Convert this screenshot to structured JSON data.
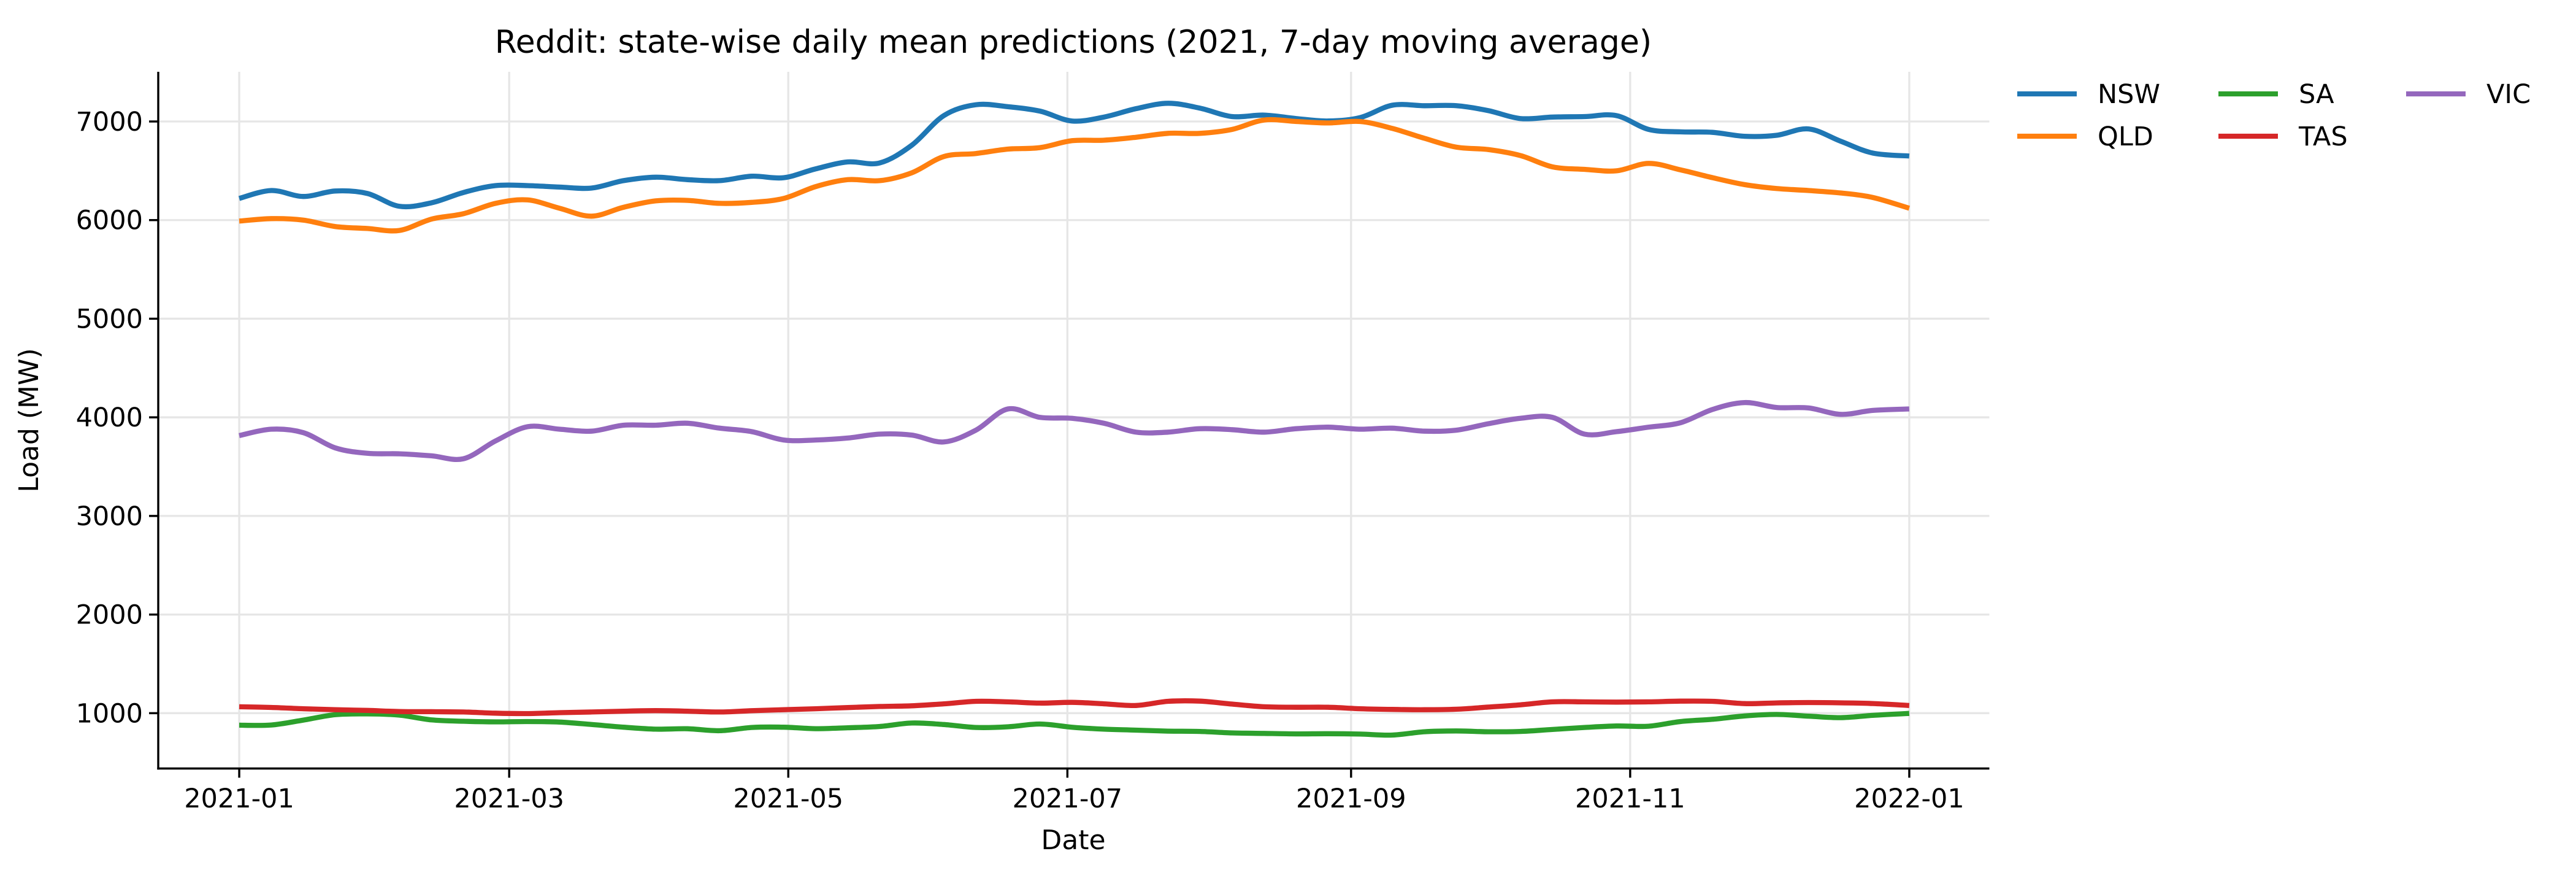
{
  "figure": {
    "title": "Reddit: state-wise daily mean predictions (2021, 7-day moving average)",
    "xlabel": "Date",
    "ylabel": "Load (MW)",
    "background": "#ffffff",
    "text_color": "#000000",
    "grid_color": "#e6e6e6",
    "spine_color": "#000000"
  },
  "chart_data": {
    "type": "line",
    "title": "Reddit: state-wise daily mean predictions (2021, 7-day moving average)",
    "xlabel": "Date",
    "ylabel": "Load (MW)",
    "grid": true,
    "legend_position": "outside-right-top",
    "legend_columns": 3,
    "x_unit": "days since 2021-01-01",
    "xlim_days": [
      -17.7,
      382.5
    ],
    "ylim": [
      439,
      7504
    ],
    "y_ticks": [
      1000,
      2000,
      3000,
      4000,
      5000,
      6000,
      7000
    ],
    "x_ticks": [
      {
        "label": "2021-01",
        "day": 0
      },
      {
        "label": "2021-03",
        "day": 59
      },
      {
        "label": "2021-05",
        "day": 120
      },
      {
        "label": "2021-07",
        "day": 181
      },
      {
        "label": "2021-09",
        "day": 243
      },
      {
        "label": "2021-11",
        "day": 304
      },
      {
        "label": "2022-01",
        "day": 365
      }
    ],
    "sample_days": [
      0,
      7,
      14,
      21,
      28,
      35,
      42,
      49,
      56,
      63,
      70,
      77,
      84,
      91,
      98,
      105,
      112,
      119,
      126,
      133,
      140,
      147,
      154,
      161,
      168,
      175,
      182,
      189,
      196,
      203,
      210,
      217,
      224,
      231,
      238,
      245,
      252,
      259,
      266,
      273,
      280,
      287,
      294,
      301,
      308,
      315,
      322,
      329,
      336,
      343,
      350,
      357,
      365
    ],
    "series": [
      {
        "name": "NSW",
        "color": "#1f77b4",
        "values": [
          6220,
          6300,
          6240,
          6295,
          6270,
          6140,
          6175,
          6280,
          6350,
          6350,
          6335,
          6325,
          6400,
          6435,
          6410,
          6400,
          6445,
          6430,
          6520,
          6590,
          6580,
          6760,
          7060,
          7170,
          7150,
          7105,
          7005,
          7045,
          7130,
          7185,
          7135,
          7050,
          7065,
          7030,
          7005,
          7040,
          7165,
          7160,
          7160,
          7110,
          7030,
          7045,
          7050,
          7060,
          6920,
          6895,
          6890,
          6850,
          6860,
          6925,
          6800,
          6680,
          6650
        ]
      },
      {
        "name": "QLD",
        "color": "#ff7f0e",
        "values": [
          5990,
          6015,
          6000,
          5935,
          5915,
          5895,
          6010,
          6065,
          6170,
          6205,
          6120,
          6040,
          6130,
          6195,
          6200,
          6170,
          6180,
          6220,
          6340,
          6410,
          6400,
          6480,
          6645,
          6675,
          6720,
          6735,
          6805,
          6810,
          6840,
          6880,
          6880,
          6920,
          7015,
          7000,
          6985,
          7000,
          6930,
          6830,
          6740,
          6715,
          6655,
          6540,
          6515,
          6500,
          6575,
          6510,
          6430,
          6360,
          6320,
          6300,
          6275,
          6230,
          6120
        ]
      },
      {
        "name": "SA",
        "color": "#2ca02c",
        "values": [
          878,
          880,
          930,
          985,
          993,
          980,
          932,
          918,
          912,
          915,
          910,
          885,
          858,
          838,
          842,
          822,
          855,
          858,
          843,
          852,
          865,
          900,
          885,
          855,
          862,
          890,
          858,
          838,
          828,
          818,
          815,
          800,
          795,
          790,
          792,
          788,
          778,
          812,
          820,
          812,
          815,
          835,
          855,
          870,
          868,
          915,
          938,
          972,
          987,
          970,
          955,
          978,
          998
        ]
      },
      {
        "name": "TAS",
        "color": "#d62728",
        "values": [
          1065,
          1058,
          1045,
          1035,
          1028,
          1017,
          1015,
          1012,
          1000,
          996,
          1005,
          1012,
          1020,
          1026,
          1020,
          1012,
          1025,
          1035,
          1045,
          1057,
          1068,
          1075,
          1095,
          1120,
          1115,
          1102,
          1110,
          1095,
          1078,
          1120,
          1122,
          1092,
          1065,
          1060,
          1060,
          1045,
          1038,
          1035,
          1040,
          1062,
          1085,
          1115,
          1115,
          1112,
          1115,
          1122,
          1120,
          1097,
          1104,
          1108,
          1105,
          1098,
          1078
        ]
      },
      {
        "name": "VIC",
        "color": "#9467bd",
        "values": [
          3815,
          3880,
          3845,
          3690,
          3635,
          3630,
          3610,
          3580,
          3760,
          3905,
          3880,
          3860,
          3920,
          3920,
          3940,
          3890,
          3855,
          3770,
          3770,
          3790,
          3830,
          3820,
          3750,
          3870,
          4085,
          4000,
          3990,
          3940,
          3850,
          3850,
          3885,
          3875,
          3850,
          3885,
          3900,
          3880,
          3890,
          3860,
          3870,
          3935,
          3990,
          4000,
          3830,
          3855,
          3900,
          3945,
          4080,
          4150,
          4100,
          4095,
          4030,
          4070,
          4085
        ]
      }
    ]
  }
}
